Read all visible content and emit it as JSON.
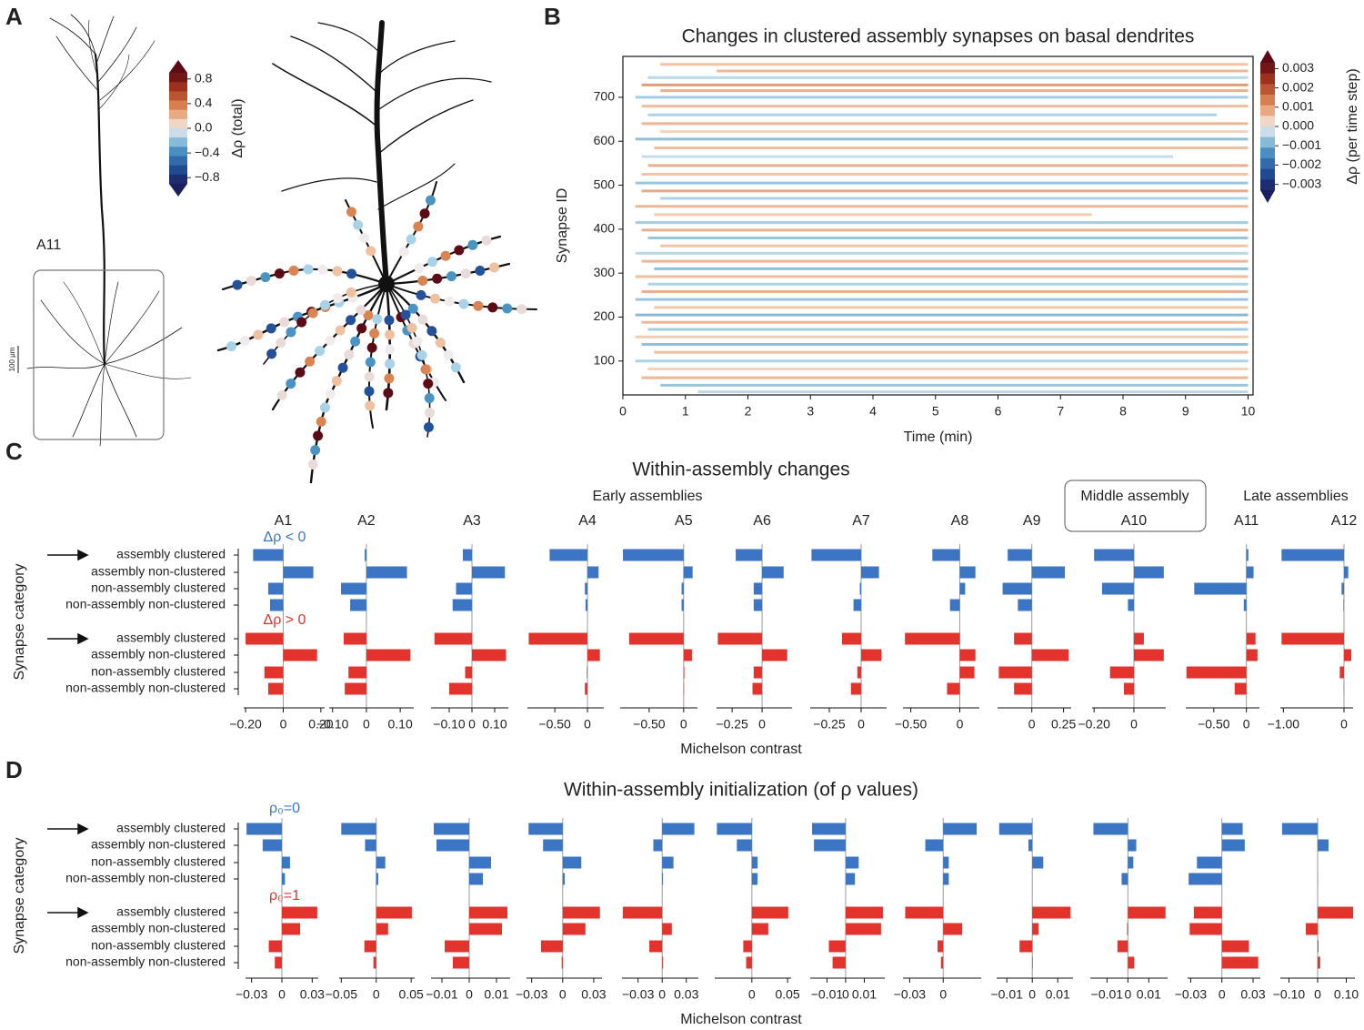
{
  "panel_labels": [
    "A",
    "B",
    "C",
    "D"
  ],
  "panel_a": {
    "label": "A11",
    "scale_bar": "100 μm",
    "colorbar": {
      "label": "Δρ (total)",
      "clim": [
        -0.9,
        0.9
      ],
      "ticks": [
        0.8,
        0.4,
        {
          "value": 0,
          "label": "0.0"
        },
        {
          "value": -0.4,
          "label": "−0.4"
        },
        {
          "value": -0.8,
          "label": "−0.8"
        }
      ]
    }
  },
  "chart_data": [
    {
      "type": "segments",
      "title": "Changes in clustered assembly synapses on basal dendrites",
      "xlabel": "Time (min)",
      "ylabel": "Synapse ID",
      "xlim": [
        0,
        10.08
      ],
      "xticks": [
        0,
        1,
        2,
        3,
        4,
        5,
        6,
        7,
        8,
        9,
        10
      ],
      "ylim": [
        23,
        793
      ],
      "yticks": [
        100,
        200,
        300,
        400,
        500,
        600,
        700
      ],
      "colorbar": {
        "label": "Δρ (per time step)",
        "clim": [
          -0.0033,
          0.0033
        ],
        "ticks": [
          0.003,
          0.002,
          0.001,
          {
            "value": 0,
            "label": "0.000"
          },
          {
            "value": -0.001,
            "label": "−0.001"
          },
          {
            "value": -0.002,
            "label": "−0.002"
          },
          {
            "value": -0.003,
            "label": "−0.003"
          }
        ]
      },
      "segments": [
        [
          775,
          0.6,
          10,
          0.0006
        ],
        [
          760,
          1.5,
          10,
          0.0008
        ],
        [
          745,
          0.4,
          10,
          -0.0005
        ],
        [
          728,
          0.3,
          10,
          0.0012
        ],
        [
          715,
          0.6,
          10,
          0.0009
        ],
        [
          700,
          0.2,
          10,
          -0.0007
        ],
        [
          680,
          0.3,
          10,
          0.0007
        ],
        [
          660,
          0.4,
          9.5,
          -0.0006
        ],
        [
          640,
          0.3,
          10,
          0.0008
        ],
        [
          622,
          0.6,
          10,
          0.0004
        ],
        [
          605,
          0.2,
          10,
          -0.0009
        ],
        [
          585,
          0.5,
          10,
          0.0007
        ],
        [
          565,
          0.3,
          8.8,
          -0.0004
        ],
        [
          545,
          0.4,
          10,
          0.0009
        ],
        [
          525,
          0.3,
          10,
          0.0006
        ],
        [
          505,
          0.2,
          10,
          -0.0008
        ],
        [
          487,
          0.3,
          10,
          0.001
        ],
        [
          470,
          0.6,
          10,
          -0.0006
        ],
        [
          452,
          0.2,
          10,
          0.0008
        ],
        [
          433,
          0.5,
          7.5,
          0.0005
        ],
        [
          415,
          0.2,
          10,
          -0.0007
        ],
        [
          398,
          0.3,
          10,
          0.0009
        ],
        [
          380,
          0.4,
          10,
          -0.0008
        ],
        [
          362,
          0.6,
          10,
          0.0006
        ],
        [
          345,
          0.2,
          10,
          -0.0005
        ],
        [
          327,
          0.3,
          10,
          0.0008
        ],
        [
          310,
          0.5,
          10,
          -0.0009
        ],
        [
          292,
          0.2,
          10,
          0.0007
        ],
        [
          275,
          0.4,
          10,
          -0.0006
        ],
        [
          258,
          0.3,
          10,
          0.0009
        ],
        [
          240,
          0.2,
          10,
          -0.0008
        ],
        [
          222,
          0.5,
          10,
          0.0006
        ],
        [
          205,
          0.2,
          10,
          -0.001
        ],
        [
          188,
          0.3,
          10,
          0.0008
        ],
        [
          172,
          0.4,
          10,
          -0.0007
        ],
        [
          155,
          0.2,
          10,
          0.0005
        ],
        [
          138,
          0.3,
          10,
          -0.0009
        ],
        [
          120,
          0.5,
          10,
          0.0007
        ],
        [
          100,
          0.2,
          10,
          -0.0006
        ],
        [
          82,
          0.4,
          10,
          0.0004
        ],
        [
          62,
          0.3,
          10,
          0.0008
        ],
        [
          45,
          0.6,
          10,
          -0.0008
        ],
        [
          30,
          1.2,
          10,
          -0.0005
        ]
      ]
    },
    {
      "type": "facet-barh",
      "title": "Within-assembly changes",
      "xlabel": "Michelson contrast",
      "ylabel": "Synapse category",
      "categories": [
        "assembly clustered",
        "assembly non-clustered",
        "non-assembly clustered",
        "non-assembly non-clustered"
      ],
      "groups": [
        "Early assemblies",
        "Middle assembly",
        "Late assemblies"
      ],
      "series": [
        {
          "name": "Δρ < 0",
          "color": "#3b75c4"
        },
        {
          "name": "Δρ > 0",
          "color": "#e2332d"
        }
      ],
      "panels": [
        {
          "name": "A1",
          "xlim": [
            -0.21,
            0.22
          ],
          "xticks": [
            {
              "value": -0.2,
              "label": "−0.20"
            },
            0,
            {
              "value": 0.2,
              "label": "0.20"
            }
          ],
          "values": [
            [
              -0.16,
              0.16,
              -0.08,
              -0.07
            ],
            [
              -0.2,
              0.18,
              -0.1,
              -0.08
            ]
          ]
        },
        {
          "name": "A2",
          "xlim": [
            -0.11,
            0.14
          ],
          "xticks": [
            {
              "value": -0.1,
              "label": "−0.10"
            },
            0,
            {
              "value": 0.1,
              "label": "0.10"
            }
          ],
          "values": [
            [
              -0.005,
              0.12,
              -0.075,
              -0.048
            ],
            [
              -0.067,
              0.13,
              -0.053,
              -0.064
            ]
          ]
        },
        {
          "name": "A3",
          "xlim": [
            -0.18,
            0.16
          ],
          "xticks": [
            {
              "value": -0.1,
              "label": "−0.10"
            },
            0,
            {
              "value": 0.1,
              "label": "0.10"
            }
          ],
          "values": [
            [
              -0.04,
              0.145,
              -0.07,
              -0.085
            ],
            [
              -0.165,
              0.15,
              -0.03,
              -0.1
            ]
          ]
        },
        {
          "name": "A4",
          "xlim": [
            -0.92,
            0.25
          ],
          "xticks": [
            {
              "value": -0.5,
              "label": "−0.50"
            },
            0
          ],
          "values": [
            [
              -0.58,
              0.17,
              -0.04,
              -0.03
            ],
            [
              -0.9,
              0.19,
              -0.01,
              -0.04
            ]
          ]
        },
        {
          "name": "A5",
          "xlim": [
            -0.92,
            0.2
          ],
          "xticks": [
            {
              "value": -0.5,
              "label": "−0.50"
            },
            0
          ],
          "values": [
            [
              -0.88,
              0.13,
              -0.03,
              -0.03
            ],
            [
              -0.79,
              0.12,
              0.01,
              0.005
            ]
          ]
        },
        {
          "name": "A6",
          "xlim": [
            -0.38,
            0.25
          ],
          "xticks": [
            {
              "value": -0.25,
              "label": "−0.25"
            },
            0
          ],
          "values": [
            [
              -0.22,
              0.18,
              -0.07,
              -0.07
            ],
            [
              -0.37,
              0.21,
              -0.07,
              -0.08
            ]
          ]
        },
        {
          "name": "A7",
          "xlim": [
            -0.4,
            0.2
          ],
          "xticks": [
            {
              "value": -0.25,
              "label": "−0.25"
            },
            0
          ],
          "values": [
            [
              -0.39,
              0.14,
              -0.01,
              -0.06
            ],
            [
              -0.15,
              0.16,
              -0.03,
              -0.08
            ]
          ]
        },
        {
          "name": "A8",
          "xlim": [
            -0.58,
            0.2
          ],
          "xticks": [
            {
              "value": -0.5,
              "label": "−0.50"
            },
            0
          ],
          "values": [
            [
              -0.28,
              0.16,
              0.055,
              -0.1
            ],
            [
              -0.56,
              0.16,
              0.15,
              -0.13
            ]
          ]
        },
        {
          "name": "A9",
          "xlim": [
            -0.27,
            0.31
          ],
          "xticks": [
            0,
            0.25
          ],
          "values": [
            [
              -0.19,
              0.26,
              -0.23,
              -0.11
            ],
            [
              -0.14,
              0.29,
              -0.26,
              -0.14
            ]
          ]
        },
        {
          "name": "A10",
          "xlim": [
            -0.21,
            0.16
          ],
          "xticks": [
            {
              "value": -0.2,
              "label": "−0.20"
            },
            0
          ],
          "values": [
            [
              -0.2,
              0.15,
              -0.16,
              -0.03
            ],
            [
              0.05,
              0.15,
              -0.12,
              -0.05
            ]
          ]
        },
        {
          "name": "A11",
          "xlim": [
            -0.93,
            0.2
          ],
          "xticks": [
            {
              "value": -0.5,
              "label": "−0.50"
            },
            0
          ],
          "values": [
            [
              0.03,
              0.11,
              -0.8,
              -0.04
            ],
            [
              0.14,
              0.17,
              -0.92,
              -0.18
            ]
          ]
        },
        {
          "name": "A12",
          "xlim": [
            -1.05,
            0.15
          ],
          "xticks": [
            {
              "value": -1,
              "label": "−1.00"
            },
            0
          ],
          "values": [
            [
              -1.03,
              0.07,
              -0.04,
              -0.01
            ],
            [
              -1.03,
              0.12,
              -0.07,
              -0.005
            ]
          ]
        }
      ]
    },
    {
      "type": "facet-barh",
      "title": "Within-assembly initialization (of ρ values)",
      "xlabel": "Michelson contrast",
      "ylabel": "Synapse category",
      "categories": [
        "assembly clustered",
        "assembly non-clustered",
        "non-assembly clustered",
        "non-assembly non-clustered"
      ],
      "series": [
        {
          "name": "ρ₀=0",
          "color": "#3b75c4"
        },
        {
          "name": "ρ₀=1",
          "color": "#e2332d"
        }
      ],
      "panels": [
        {
          "xlim": [
            -0.036,
            0.036
          ],
          "xticks": [
            {
              "value": -0.03,
              "label": "−0.03"
            },
            0,
            0.03
          ],
          "values": [
            [
              -0.035,
              -0.019,
              0.008,
              0.003
            ],
            [
              0.035,
              0.018,
              -0.013,
              -0.007
            ]
          ]
        },
        {
          "xlim": [
            -0.053,
            0.055
          ],
          "xticks": [
            {
              "value": -0.05,
              "label": "−0.05"
            },
            0,
            0.05
          ],
          "values": [
            [
              -0.05,
              -0.016,
              0.013,
              0.003
            ],
            [
              0.051,
              0.017,
              -0.017,
              -0.004
            ]
          ]
        },
        {
          "xlim": [
            -0.014,
            0.015
          ],
          "xticks": [
            {
              "value": -0.01,
              "label": "−0.01"
            },
            0,
            0.01
          ],
          "values": [
            [
              -0.013,
              -0.012,
              0.008,
              0.005
            ],
            [
              0.014,
              0.012,
              -0.009,
              -0.006
            ]
          ]
        },
        {
          "xlim": [
            -0.035,
            0.038
          ],
          "xticks": [
            {
              "value": -0.03,
              "label": "−0.03"
            },
            0,
            0.03
          ],
          "values": [
            [
              -0.033,
              -0.019,
              0.018,
              0.002
            ],
            [
              0.036,
              0.022,
              -0.021,
              -0.001
            ]
          ]
        },
        {
          "xlim": [
            -0.05,
            0.045
          ],
          "xticks": [
            {
              "value": -0.03,
              "label": "−0.03"
            },
            0,
            0.03
          ],
          "values": [
            [
              0.04,
              -0.011,
              0.014,
              0.001
            ],
            [
              -0.049,
              0.012,
              -0.016,
              0.001
            ]
          ]
        },
        {
          "xlim": [
            -0.052,
            0.055
          ],
          "xticks": [
            0,
            0.05
          ],
          "values": [
            [
              -0.049,
              -0.021,
              0.008,
              0.008
            ],
            [
              0.051,
              0.023,
              -0.012,
              -0.008
            ]
          ]
        },
        {
          "xlim": [
            -0.019,
            0.021
          ],
          "xticks": [
            {
              "value": -0.01,
              "label": "−0.01"
            },
            0,
            0.01
          ],
          "values": [
            [
              -0.018,
              -0.017,
              0.007,
              0.005
            ],
            [
              0.02,
              0.019,
              -0.009,
              -0.007
            ]
          ]
        },
        {
          "xlim": [
            -0.036,
            0.034
          ],
          "xticks": [
            {
              "value": -0.03,
              "label": "−0.03"
            },
            0
          ],
          "values": [
            [
              0.03,
              -0.016,
              0.005,
              0.005
            ],
            [
              -0.034,
              0.017,
              -0.005,
              -0.002
            ]
          ]
        },
        {
          "xlim": [
            -0.014,
            0.016
          ],
          "xticks": [
            {
              "value": -0.01,
              "label": "−0.01"
            },
            0,
            0.01
          ],
          "values": [
            [
              -0.013,
              -0.0015,
              0.0043,
              0
            ],
            [
              0.015,
              0.0025,
              -0.005,
              0.0002
            ]
          ]
        },
        {
          "xlim": [
            -0.018,
            0.019
          ],
          "xticks": [
            {
              "value": -0.01,
              "label": "−0.01"
            },
            0,
            0.01
          ],
          "values": [
            [
              -0.0165,
              0.004,
              0.0026,
              -0.003
            ],
            [
              0.018,
              -0.0004,
              -0.005,
              0.003
            ]
          ]
        },
        {
          "xlim": [
            -0.033,
            0.037
          ],
          "xticks": [
            {
              "value": -0.03,
              "label": "−0.03"
            },
            0,
            0.03
          ],
          "values": [
            [
              0.02,
              0.022,
              -0.024,
              -0.032
            ],
            [
              -0.027,
              -0.031,
              0.026,
              0.035
            ]
          ]
        },
        {
          "xlim": [
            -0.13,
            0.13
          ],
          "xticks": [
            {
              "value": -0.1,
              "label": "−0.10"
            },
            0,
            {
              "value": 0.1,
              "label": "0.10"
            }
          ],
          "values": [
            [
              -0.124,
              0.038,
              0,
              0.001
            ],
            [
              0.124,
              -0.041,
              0.003,
              0.009
            ]
          ]
        }
      ]
    }
  ]
}
